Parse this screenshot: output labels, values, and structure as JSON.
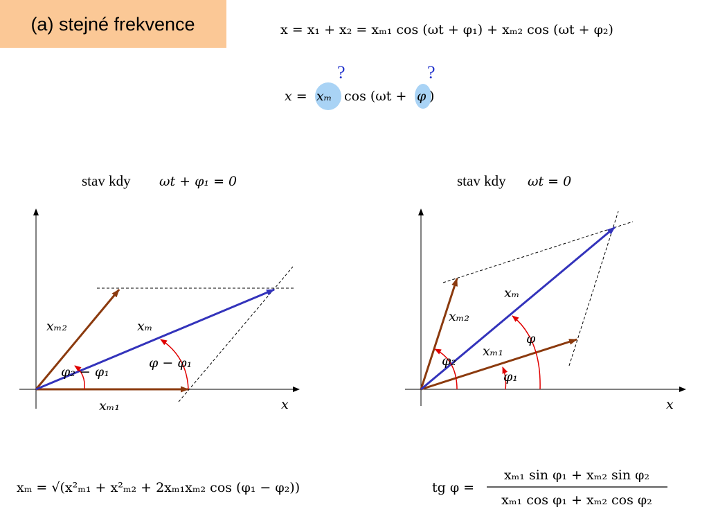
{
  "header": {
    "title": "(a) stejné frekvence"
  },
  "equations": {
    "sum": "x = x₁ + x₂ = xₘ₁ cos (ωt + φ₁) + xₘ₂ cos (ωt + φ₂)",
    "result": {
      "lhs": "x =",
      "amplitude": "xₘ",
      "middle": "cos (ωt +",
      "phase": "φ",
      "close": ")",
      "unknown_marks": [
        "?",
        "?"
      ]
    },
    "amplitude": "xₘ = √(x²ₘ₁ + x²ₘ₂ + 2xₘ₁xₘ₂ cos (φ₁ − φ₂))",
    "tangent": {
      "lhs": "tg φ =",
      "numerator": "xₘ₁ sin φ₁ + xₘ₂ sin φ₂",
      "denominator": "xₘ₁ cos φ₁ + xₘ₂ cos φ₂"
    }
  },
  "diagrams": [
    {
      "caption": "stav kdy",
      "condition": "ωt + φ₁ = 0",
      "labels": {
        "x_m2": "xₘ₂",
        "x_m": "xₘ",
        "angle_diff": "φ₂ − φ₁",
        "phase_diff": "φ − φ₁",
        "x_m1": "xₘ₁",
        "axis": "x"
      }
    },
    {
      "caption": "stav kdy",
      "condition": "ωt = 0",
      "labels": {
        "x_m": "xₘ",
        "x_m2": "xₘ₂",
        "phase": "φ",
        "phase2": "φ₂",
        "x_m1": "xₘ₁",
        "phase1": "φ₁",
        "axis": "x"
      }
    }
  ]
}
